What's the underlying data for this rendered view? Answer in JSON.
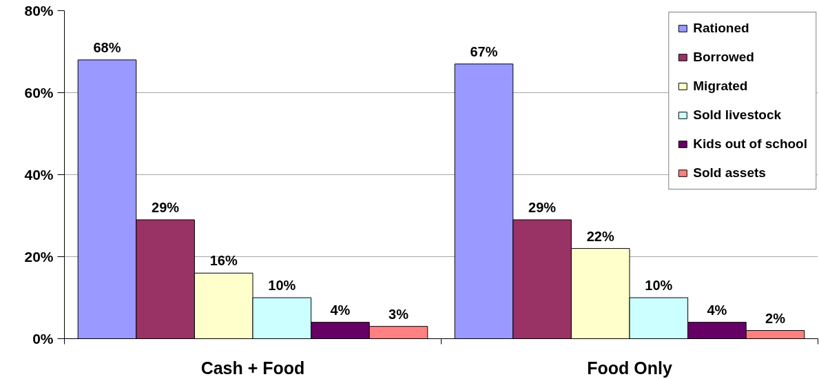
{
  "chart_data": {
    "type": "bar",
    "categories": [
      "Cash + Food",
      "Food Only"
    ],
    "series": [
      {
        "name": "Rationed",
        "color": "#9999ff",
        "values": [
          68,
          67
        ],
        "value_labels": [
          "68%",
          "67%"
        ]
      },
      {
        "name": "Borrowed",
        "color": "#993366",
        "values": [
          29,
          29
        ],
        "value_labels": [
          "29%",
          "29%"
        ]
      },
      {
        "name": "Migrated",
        "color": "#ffffcc",
        "values": [
          16,
          22
        ],
        "value_labels": [
          "16%",
          "22%"
        ]
      },
      {
        "name": "Sold livestock",
        "color": "#ccffff",
        "values": [
          10,
          10
        ],
        "value_labels": [
          "10%",
          "10%"
        ]
      },
      {
        "name": "Kids out of school",
        "color": "#660066",
        "values": [
          4,
          4
        ],
        "value_labels": [
          "4%",
          "4%"
        ]
      },
      {
        "name": "Sold assets",
        "color": "#ff8080",
        "values": [
          3,
          2
        ],
        "value_labels": [
          "3%",
          "2%"
        ]
      }
    ],
    "ylim": [
      0,
      80
    ],
    "yticks": [
      {
        "value": 0,
        "label": "0%"
      },
      {
        "value": 20,
        "label": "20%"
      },
      {
        "value": 40,
        "label": "40%"
      },
      {
        "value": 60,
        "label": "60%"
      },
      {
        "value": 80,
        "label": "80%"
      }
    ],
    "grid": "y",
    "legend": "top right"
  }
}
